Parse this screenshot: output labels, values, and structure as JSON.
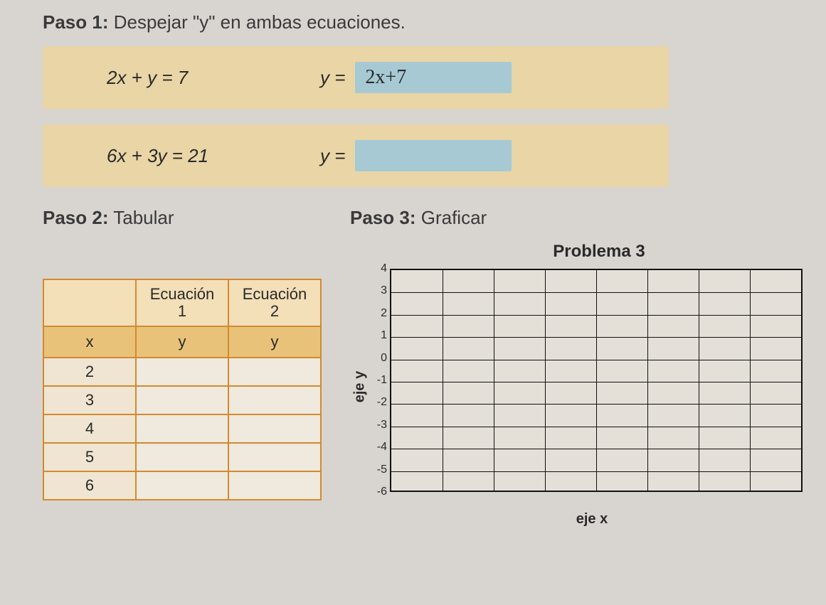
{
  "step1": {
    "heading_bold": "Paso 1:",
    "heading_rest": " Despejar \"y\" en ambas ecuaciones."
  },
  "equations": [
    {
      "lhs": "2x + y = 7",
      "y_prefix": "y =",
      "answer": "2x+7"
    },
    {
      "lhs": "6x + 3y = 21",
      "y_prefix": "y =",
      "answer": ""
    }
  ],
  "step2": {
    "heading_bold": "Paso 2:",
    "heading_rest": " Tabular"
  },
  "step3": {
    "heading_bold": "Paso 3:",
    "heading_rest": " Graficar"
  },
  "table": {
    "col_headers": [
      "Ecuación\n1",
      "Ecuación\n2"
    ],
    "sub_headers": [
      "x",
      "y",
      "y"
    ],
    "x_values": [
      "2",
      "3",
      "4",
      "5",
      "6"
    ],
    "rows": [
      [
        "",
        ""
      ],
      [
        "",
        ""
      ],
      [
        "",
        ""
      ],
      [
        "",
        ""
      ],
      [
        "",
        ""
      ]
    ],
    "border_color": "#d28a2f",
    "header_bg": "#f3dfb8",
    "subheader_bg": "#e9c27a",
    "cell_bg": "#efe9de"
  },
  "chart": {
    "title": "Problema 3",
    "ylabel": "eje y",
    "xlabel": "eje x",
    "type": "grid",
    "y_ticks": [
      4,
      3,
      2,
      1,
      0,
      -1,
      -2,
      -3,
      -4,
      -5,
      -6
    ],
    "ylim": [
      -6,
      4
    ],
    "x_cols": 8,
    "grid_color": "#111111",
    "background_color": "#e4e0d8",
    "title_fontsize": 24,
    "label_fontsize": 20,
    "tick_fontsize": 16
  },
  "colors": {
    "page_bg": "#d8d5d0",
    "eq_box_bg": "#e9d5a5",
    "answer_bg": "#a6c9d4"
  }
}
